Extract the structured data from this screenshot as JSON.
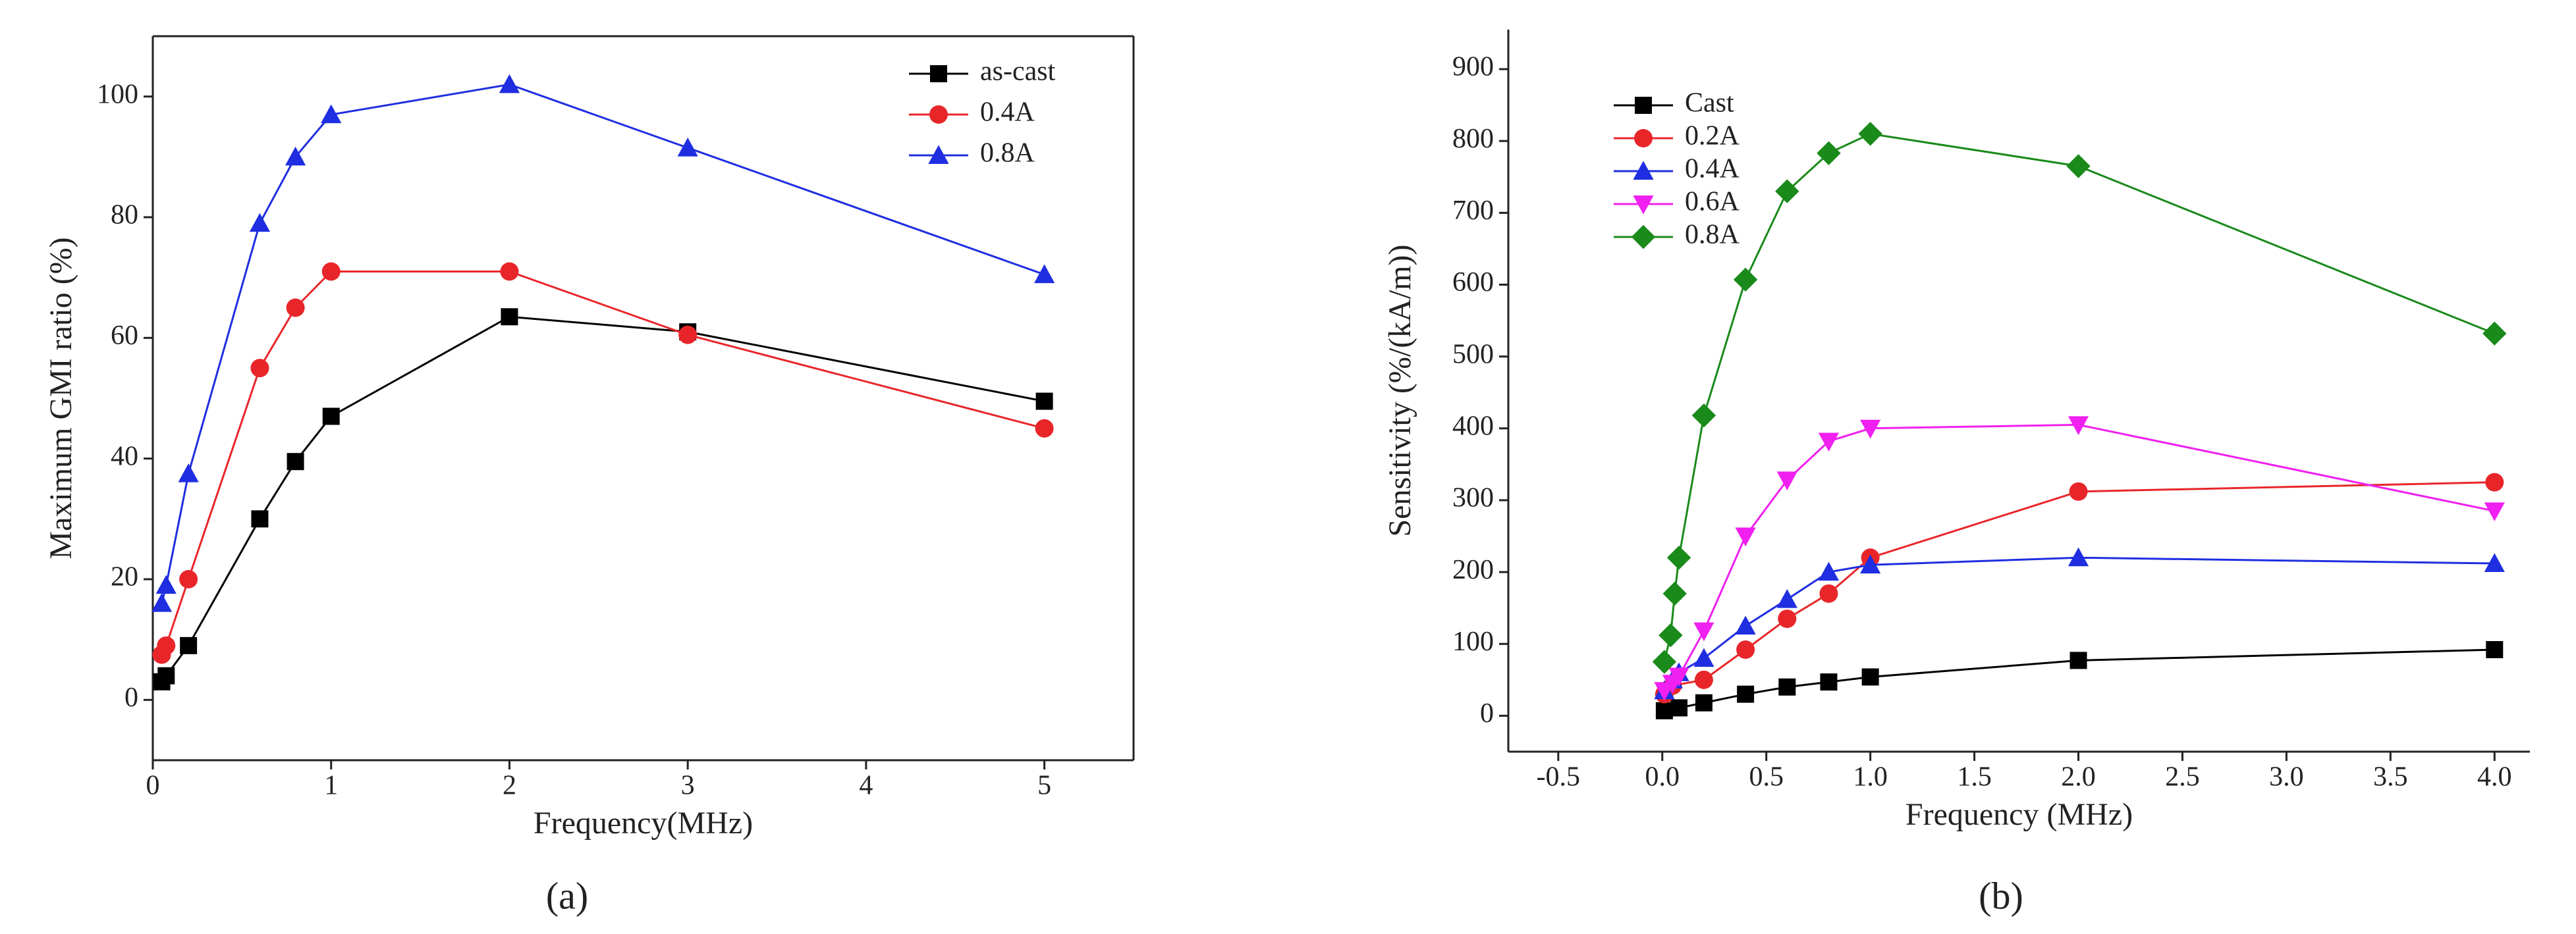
{
  "chart_data": [
    {
      "type": "line",
      "caption": "(a)",
      "xlabel": "Frequency(MHz)",
      "ylabel": "Maximum GMI ratio (%)",
      "xlim": [
        0,
        5.5
      ],
      "xticks": [
        0,
        1,
        2,
        3,
        4,
        5
      ],
      "ylim": [
        -10,
        110
      ],
      "yticks": [
        0,
        20,
        40,
        60,
        80,
        100
      ],
      "legend": "upper right",
      "box": true,
      "series": [
        {
          "name": "as-cast",
          "color": "#000000",
          "marker": "square",
          "x": [
            0.05,
            0.075,
            0.2,
            0.6,
            0.8,
            1,
            2,
            3,
            5
          ],
          "values": [
            3,
            4,
            9,
            30,
            39.5,
            47,
            63.5,
            61,
            49.5
          ]
        },
        {
          "name": "0.4A",
          "color": "#e8262a",
          "marker": "circle",
          "x": [
            0.05,
            0.075,
            0.2,
            0.6,
            0.8,
            1,
            2,
            3,
            5
          ],
          "values": [
            7.5,
            9,
            20,
            55,
            65,
            71,
            71,
            60.5,
            45
          ]
        },
        {
          "name": "0.8A",
          "color": "#1f2ee0",
          "marker": "triangle",
          "x": [
            0.05,
            0.075,
            0.2,
            0.6,
            0.8,
            1,
            2,
            3,
            5
          ],
          "values": [
            16,
            19,
            37.5,
            79,
            90,
            97,
            102,
            91.5,
            70.5
          ]
        }
      ]
    },
    {
      "type": "line",
      "caption": "(b)",
      "xlabel": "Frequency (MHz)",
      "ylabel": "Sensitivity (%/(kA/m))",
      "xlim": [
        -0.74,
        4.17
      ],
      "xticks": [
        -0.5,
        {
          "value": 0,
          "label": "0.0"
        },
        0.5,
        {
          "value": 1,
          "label": "1.0"
        },
        1.5,
        {
          "value": 2,
          "label": "2.0"
        },
        2.5,
        {
          "value": 3,
          "label": "3.0"
        },
        3.5,
        {
          "value": 4,
          "label": "4.0"
        }
      ],
      "ylim": [
        -50,
        955
      ],
      "yticks": [
        0,
        100,
        200,
        300,
        400,
        500,
        600,
        700,
        800,
        900
      ],
      "legend": "upper left",
      "box": false,
      "series": [
        {
          "name": "Cast",
          "color": "#000000",
          "marker": "square",
          "x": [
            0.01,
            0.08,
            0.2,
            0.4,
            0.6,
            0.8,
            1,
            2,
            4
          ],
          "values": [
            7,
            11,
            18,
            30,
            40,
            47,
            54,
            77,
            92
          ]
        },
        {
          "name": "0.2A",
          "color": "#e8262a",
          "marker": "circle",
          "x": [
            0.01,
            0.05,
            0.2,
            0.4,
            0.6,
            0.8,
            1,
            2,
            4
          ],
          "values": [
            30,
            42,
            50,
            92,
            135,
            170,
            220,
            312,
            325
          ]
        },
        {
          "name": "0.4A",
          "color": "#1f2ee0",
          "marker": "triangle",
          "x": [
            0.01,
            0.05,
            0.08,
            0.2,
            0.4,
            0.6,
            0.8,
            1,
            2,
            4
          ],
          "values": [
            35,
            50,
            60,
            80,
            125,
            162,
            200,
            210,
            220,
            212
          ]
        },
        {
          "name": "0.6A",
          "color": "#f020f0",
          "marker": "triangle-down",
          "x": [
            0.01,
            0.05,
            0.08,
            0.2,
            0.4,
            0.6,
            0.8,
            1,
            2,
            4
          ],
          "values": [
            35,
            45,
            55,
            118,
            250,
            328,
            382,
            400,
            405,
            285
          ]
        },
        {
          "name": "0.8A",
          "color": "#1a8a1a",
          "marker": "diamond",
          "x": [
            0.01,
            0.04,
            0.06,
            0.08,
            0.2,
            0.4,
            0.6,
            0.8,
            1,
            2,
            4
          ],
          "values": [
            75,
            112,
            170,
            220,
            418,
            607,
            730,
            783,
            810,
            765,
            532
          ]
        }
      ]
    }
  ]
}
